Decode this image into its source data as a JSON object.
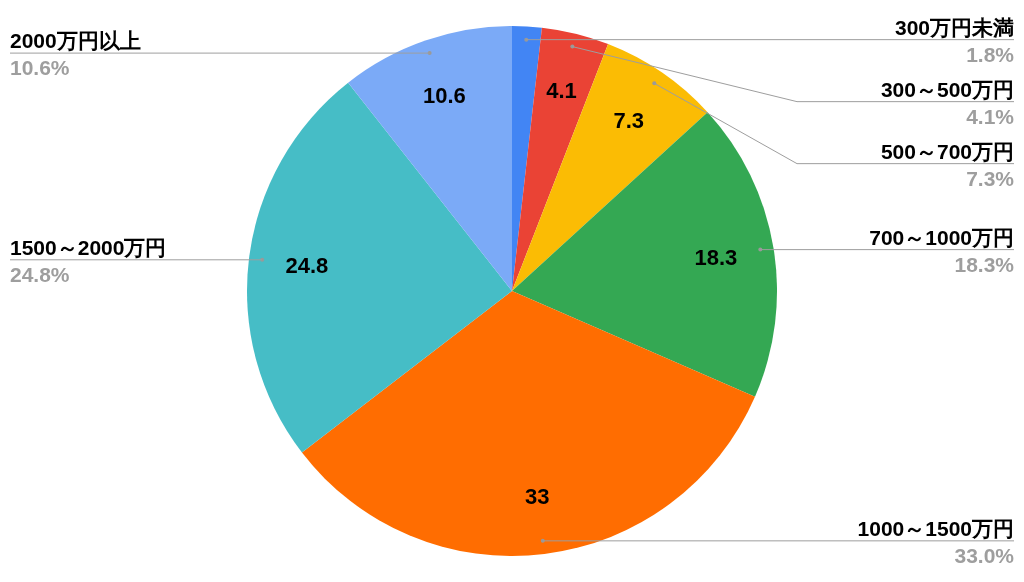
{
  "chart_data": {
    "type": "pie",
    "categories": [
      "300万円未満",
      "300～500万円",
      "500～700万円",
      "700～1000万円",
      "1000～1500万円",
      "1500～2000万円",
      "2000万円以上"
    ],
    "values": [
      1.8,
      4.1,
      7.3,
      18.3,
      33.0,
      24.8,
      10.6
    ],
    "colors": [
      "#4285f4",
      "#ea4335",
      "#fbbc04",
      "#34a853",
      "#ff6d01",
      "#46bdc6",
      "#7baaf7"
    ],
    "value_labels": [
      null,
      "4.1",
      "7.3",
      "18.3",
      "33",
      "24.8",
      "10.6"
    ],
    "annotations": [
      "1.8%",
      "4.1%",
      "7.3%",
      "18.3%",
      "33.0%",
      "24.8%",
      "10.6%"
    ]
  }
}
